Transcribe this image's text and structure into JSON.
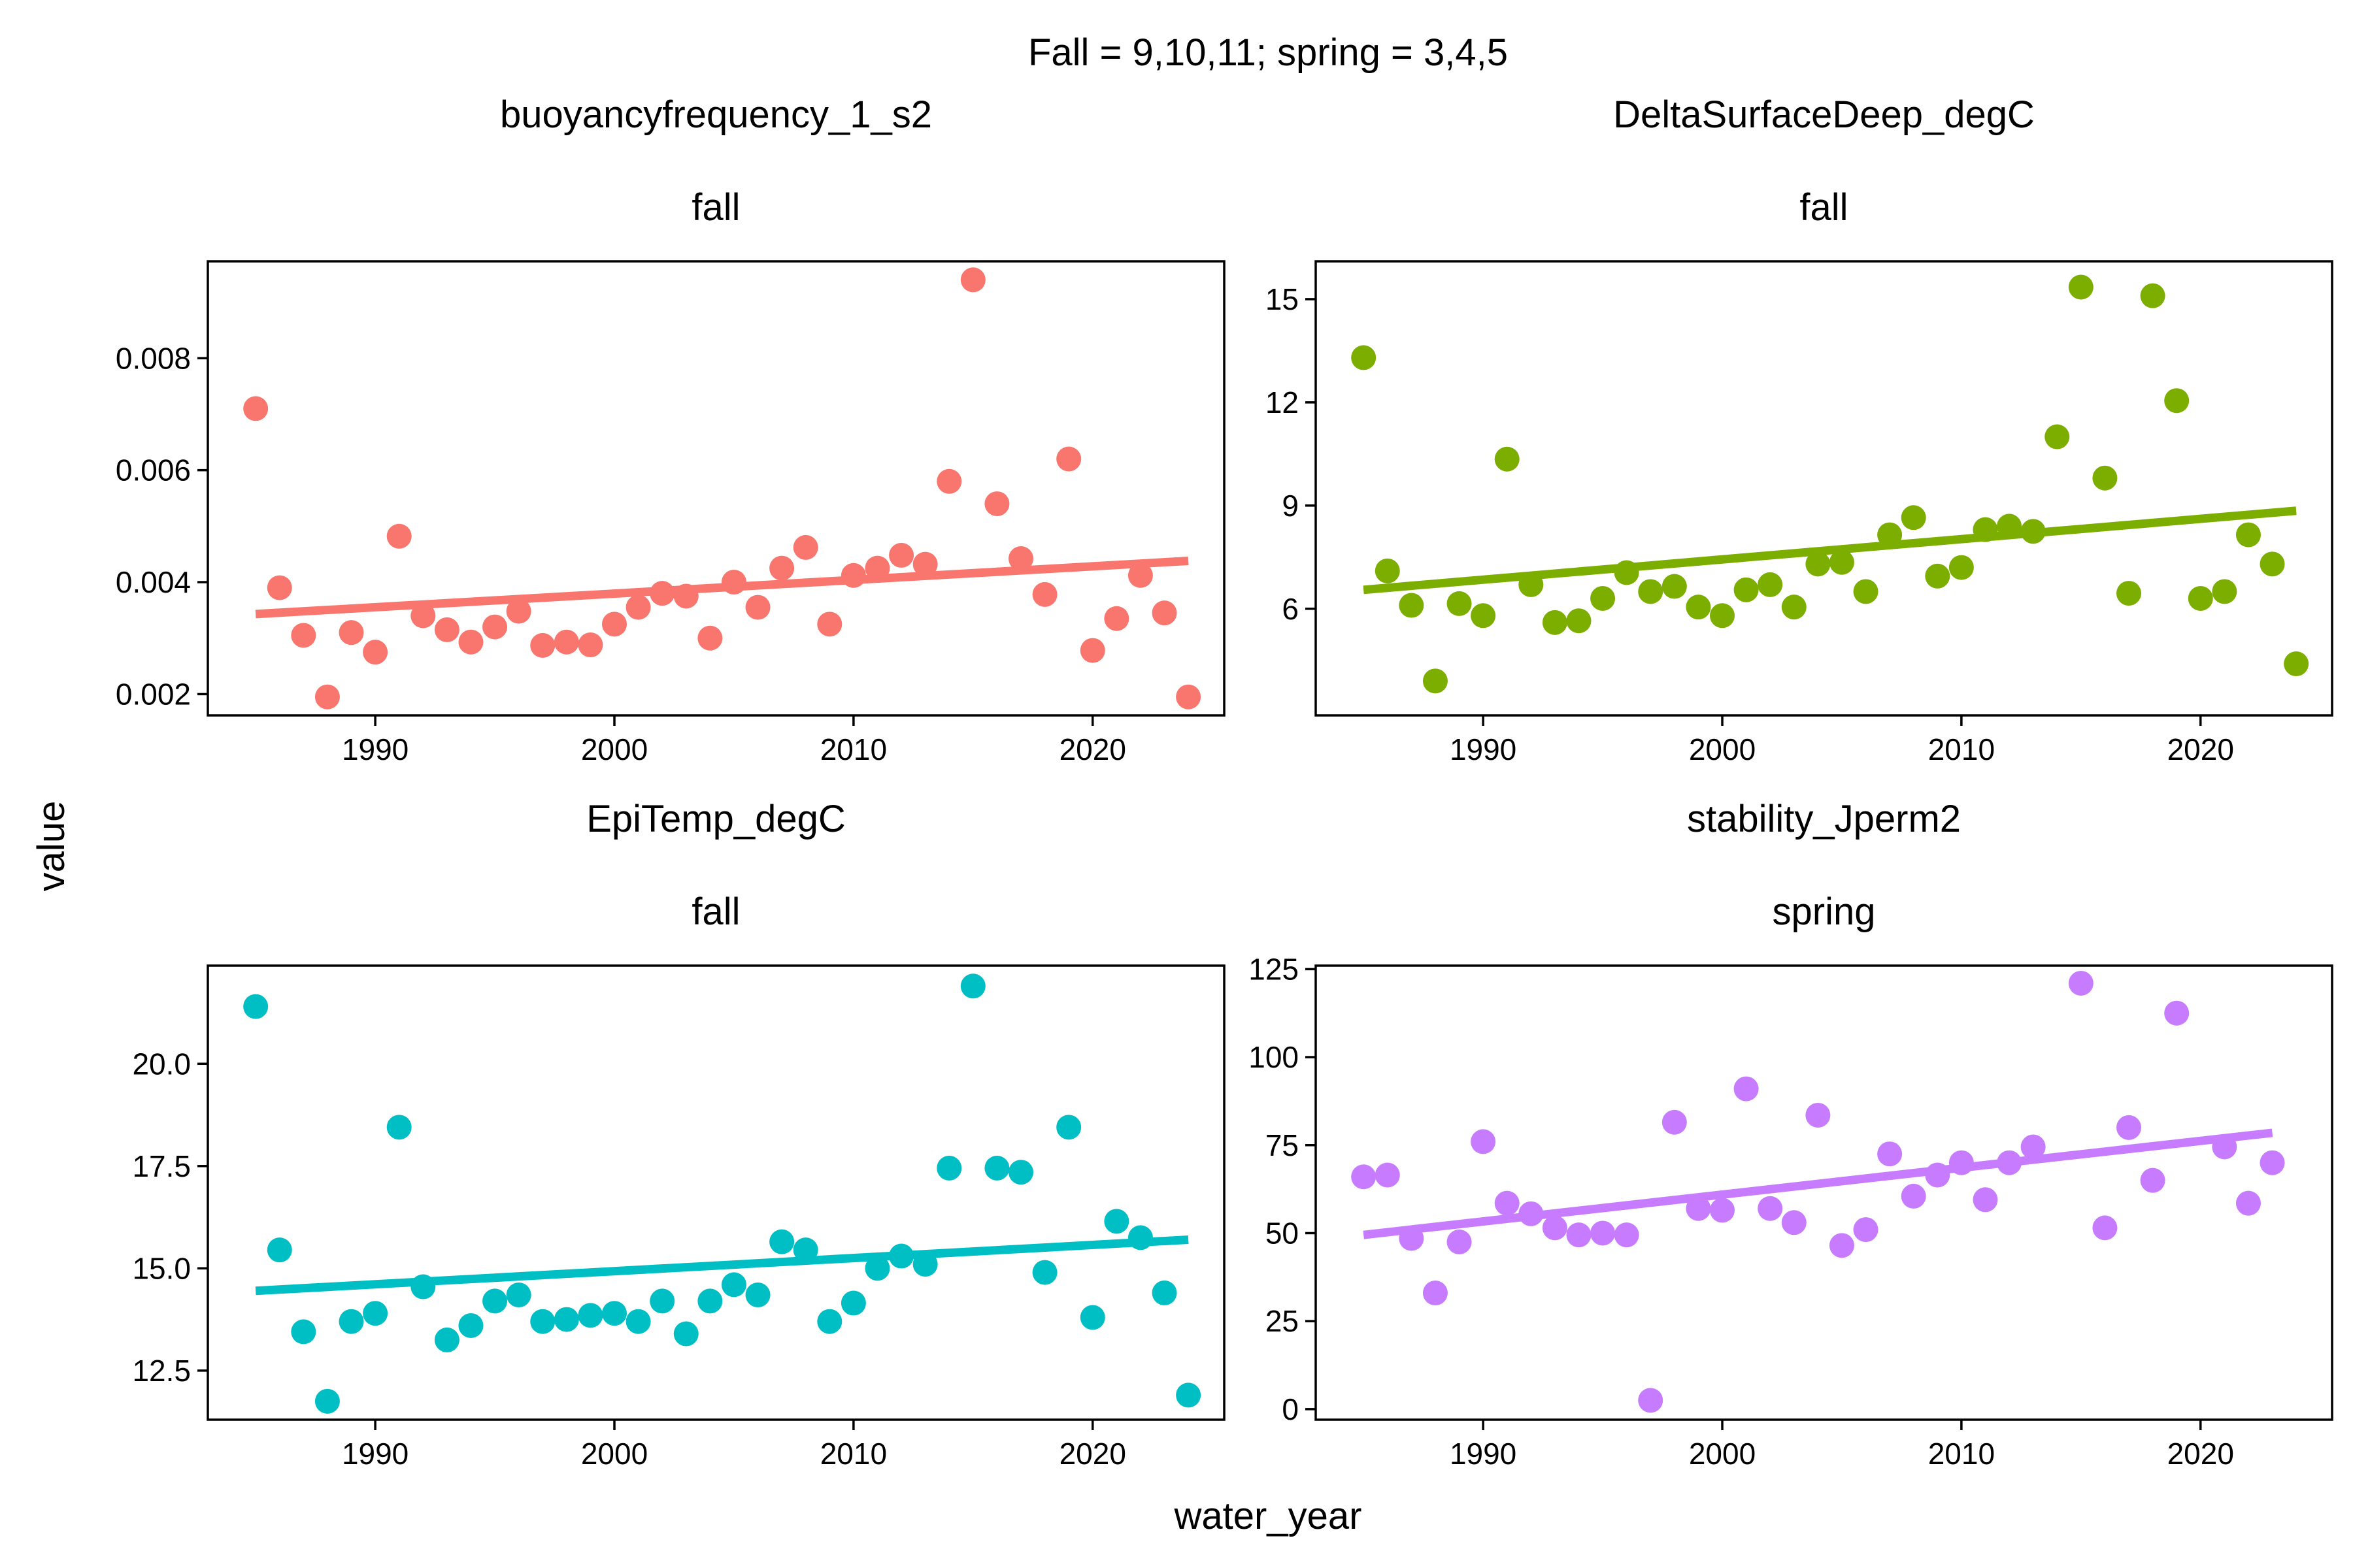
{
  "title": "Fall = 9,10,11; spring = 3,4,5",
  "xlabel": "water_year",
  "ylabel": "value",
  "chart_data": [
    {
      "type": "scatter",
      "variable": "buoyancyfrequency_1_s2",
      "season": "fall",
      "color": "#F8766D",
      "xlim": [
        1983,
        2025.5
      ],
      "ylim": [
        0.00162,
        0.00973
      ],
      "xticks": [
        1990,
        2000,
        2010,
        2020
      ],
      "yticks": [
        0.002,
        0.004,
        0.006,
        0.008
      ],
      "ytick_labels": [
        "0.002",
        "0.004",
        "0.006",
        "0.008"
      ],
      "x": [
        1985,
        1986,
        1987,
        1988,
        1989,
        1990,
        1991,
        1992,
        1993,
        1994,
        1995,
        1996,
        1997,
        1998,
        1999,
        2000,
        2001,
        2002,
        2003,
        2004,
        2005,
        2006,
        2007,
        2008,
        2009,
        2010,
        2011,
        2012,
        2013,
        2014,
        2015,
        2016,
        2017,
        2018,
        2019,
        2020,
        2021,
        2022,
        2023,
        2024
      ],
      "y": [
        0.0071,
        0.0039,
        0.00305,
        0.00195,
        0.0031,
        0.00275,
        0.00482,
        0.0034,
        0.00315,
        0.00293,
        0.0032,
        0.00348,
        0.00287,
        0.00293,
        0.00288,
        0.00325,
        0.00355,
        0.0038,
        0.00375,
        0.003,
        0.004,
        0.00355,
        0.00425,
        0.00462,
        0.00325,
        0.00412,
        0.00425,
        0.00448,
        0.00432,
        0.0058,
        0.0094,
        0.0054,
        0.00442,
        0.00378,
        0.0062,
        0.00278,
        0.00335,
        0.00412,
        0.00345,
        0.00195
      ],
      "trend": {
        "x": [
          1985,
          2024
        ],
        "y": [
          0.00343,
          0.00438
        ]
      }
    },
    {
      "type": "scatter",
      "variable": "DeltaSurfaceDeep_degC",
      "season": "fall",
      "color": "#7CAE00",
      "xlim": [
        1983,
        2025.5
      ],
      "ylim": [
        2.9,
        16.1
      ],
      "xticks": [
        1990,
        2000,
        2010,
        2020
      ],
      "yticks": [
        6,
        9,
        12,
        15
      ],
      "ytick_labels": [
        "6",
        "9",
        "12",
        "15"
      ],
      "x": [
        1985,
        1986,
        1987,
        1988,
        1989,
        1990,
        1991,
        1992,
        1993,
        1994,
        1995,
        1996,
        1997,
        1998,
        1999,
        2000,
        2001,
        2002,
        2003,
        2004,
        2005,
        2006,
        2007,
        2008,
        2009,
        2010,
        2011,
        2012,
        2013,
        2014,
        2015,
        2016,
        2017,
        2018,
        2019,
        2020,
        2021,
        2022,
        2023,
        2024
      ],
      "y": [
        13.3,
        7.1,
        6.1,
        3.9,
        6.15,
        5.8,
        10.35,
        6.7,
        5.6,
        5.65,
        6.3,
        7.05,
        6.5,
        6.65,
        6.05,
        5.8,
        6.55,
        6.7,
        6.05,
        7.3,
        7.35,
        6.5,
        8.15,
        8.65,
        6.95,
        7.2,
        8.3,
        8.4,
        8.25,
        11.0,
        15.35,
        9.8,
        6.45,
        15.1,
        12.05,
        6.3,
        6.5,
        8.15,
        7.3,
        4.4
      ],
      "trend": {
        "x": [
          1985,
          2024
        ],
        "y": [
          6.55,
          8.85
        ]
      }
    },
    {
      "type": "scatter",
      "variable": "EpiTemp_degC",
      "season": "fall",
      "color": "#00BFC4",
      "xlim": [
        1983,
        2025.5
      ],
      "ylim": [
        11.3,
        22.4
      ],
      "xticks": [
        1990,
        2000,
        2010,
        2020
      ],
      "yticks": [
        12.5,
        15.0,
        17.5,
        20.0
      ],
      "ytick_labels": [
        "12.5",
        "15.0",
        "17.5",
        "20.0"
      ],
      "x": [
        1985,
        1986,
        1987,
        1988,
        1989,
        1990,
        1991,
        1992,
        1993,
        1994,
        1995,
        1996,
        1997,
        1998,
        1999,
        2000,
        2001,
        2002,
        2003,
        2004,
        2005,
        2006,
        2007,
        2008,
        2009,
        2010,
        2011,
        2012,
        2013,
        2014,
        2015,
        2016,
        2017,
        2018,
        2019,
        2020,
        2021,
        2022,
        2023,
        2024
      ],
      "y": [
        21.4,
        15.45,
        13.45,
        11.75,
        13.7,
        13.9,
        18.45,
        14.55,
        13.25,
        13.6,
        14.2,
        14.35,
        13.7,
        13.75,
        13.85,
        13.9,
        13.7,
        14.2,
        13.4,
        14.2,
        14.6,
        14.35,
        15.65,
        15.45,
        13.7,
        14.15,
        15.0,
        15.3,
        15.1,
        17.45,
        21.9,
        17.45,
        17.35,
        14.9,
        18.45,
        13.8,
        16.15,
        15.75,
        14.4,
        11.9
      ],
      "trend": {
        "x": [
          1985,
          2024
        ],
        "y": [
          14.45,
          15.7
        ]
      }
    },
    {
      "type": "scatter",
      "variable": "stability_Jperm2",
      "season": "spring",
      "color": "#C77CFF",
      "xlim": [
        1983,
        2025.5
      ],
      "ylim": [
        -3,
        126
      ],
      "xticks": [
        1990,
        2000,
        2010,
        2020
      ],
      "yticks": [
        0,
        25,
        50,
        75,
        100,
        125
      ],
      "ytick_labels": [
        "0",
        "25",
        "50",
        "75",
        "100",
        "125"
      ],
      "x": [
        1985,
        1986,
        1987,
        1988,
        1989,
        1990,
        1991,
        1992,
        1993,
        1994,
        1995,
        1996,
        1997,
        1998,
        1999,
        2000,
        2001,
        2002,
        2003,
        2004,
        2005,
        2006,
        2007,
        2008,
        2009,
        2010,
        2011,
        2012,
        2013,
        2015,
        2016,
        2017,
        2018,
        2019,
        2021,
        2022,
        2023
      ],
      "y": [
        66,
        66.5,
        48.5,
        33,
        47.5,
        76,
        58.5,
        55.5,
        51.5,
        49.5,
        50,
        49.5,
        2.5,
        81.5,
        57,
        56.5,
        91,
        57,
        53,
        83.5,
        46.5,
        51,
        72.5,
        60.5,
        66.5,
        70,
        59.5,
        70,
        74.5,
        121,
        51.5,
        80,
        65,
        112.5,
        74.5,
        58.5,
        70
      ],
      "trend": {
        "x": [
          1985,
          2023
        ],
        "y": [
          49.5,
          78.5
        ]
      }
    }
  ]
}
